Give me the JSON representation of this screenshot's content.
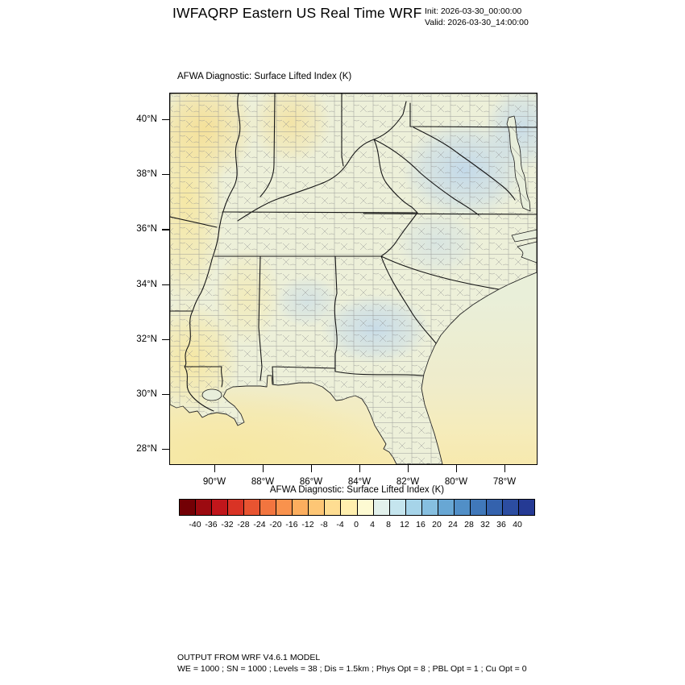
{
  "header": {
    "title": "IWFAQRP Eastern US Real Time WRF",
    "init_label": "Init: 2026-03-30_00:00:00",
    "valid_label": "Valid: 2026-03-30_14:00:00"
  },
  "map": {
    "field_title": "AFWA Diagnostic: Surface Lifted Index   (K)",
    "lat_ticks": [
      "40°N",
      "38°N",
      "36°N",
      "34°N",
      "32°N",
      "30°N",
      "28°N"
    ],
    "lon_ticks": [
      "90°W",
      "88°W",
      "86°W",
      "84°W",
      "82°W",
      "80°W",
      "78°W"
    ]
  },
  "colorbar": {
    "title": "AFWA Diagnostic: Surface Lifted Index   (K)",
    "tick_labels": [
      "-40",
      "-36",
      "-32",
      "-28",
      "-24",
      "-20",
      "-16",
      "-12",
      "-8",
      "-4",
      "0",
      "4",
      "8",
      "12",
      "16",
      "20",
      "24",
      "28",
      "32",
      "36",
      "40"
    ],
    "colors": [
      "#730005",
      "#9c0a10",
      "#c1161b",
      "#d93325",
      "#e85431",
      "#f2753f",
      "#f9924d",
      "#fcae5e",
      "#fdc675",
      "#fedd92",
      "#ffefae",
      "#fdfad2",
      "#e2f1ec",
      "#c5e5ee",
      "#a6d4e9",
      "#86bfe0",
      "#68a7d4",
      "#518fc7",
      "#4078ba",
      "#3462ad",
      "#2c4da1",
      "#253a94"
    ]
  },
  "footer": {
    "line1": "OUTPUT FROM WRF V4.6.1 MODEL",
    "line2": "WE = 1000 ; SN = 1000 ; Levels = 38 ; Dis = 1.5km ; Phys Opt = 8 ; PBL Opt = 1 ; Cu Opt = 0"
  },
  "chart_data": {
    "type": "heatmap",
    "title": "AFWA Diagnostic: Surface Lifted Index (K)",
    "model_title": "IWFAQRP Eastern US Real Time WRF",
    "init_time": "2026-03-30_00:00:00",
    "valid_time": "2026-03-30_14:00:00",
    "units": "K",
    "x_tick_labels": [
      "90°W",
      "88°W",
      "86°W",
      "84°W",
      "82°W",
      "80°W",
      "78°W"
    ],
    "y_tick_labels": [
      "40°N",
      "38°N",
      "36°N",
      "34°N",
      "32°N",
      "30°N",
      "28°N"
    ],
    "colorbar_tick_values": [
      -40,
      -36,
      -32,
      -28,
      -24,
      -20,
      -16,
      -12,
      -8,
      -4,
      0,
      4,
      8,
      12,
      16,
      20,
      24,
      28,
      32,
      36,
      40
    ],
    "colorbar_colors": [
      "#730005",
      "#9c0a10",
      "#c1161b",
      "#d93325",
      "#e85431",
      "#f2753f",
      "#f9924d",
      "#fcae5e",
      "#fdc675",
      "#fedd92",
      "#ffefae",
      "#fdfad2",
      "#e2f1ec",
      "#c5e5ee",
      "#a6d4e9",
      "#86bfe0",
      "#68a7d4",
      "#518fc7",
      "#4078ba",
      "#3462ad",
      "#2c4da1",
      "#253a94"
    ],
    "legend_position": "bottom",
    "field_summary": "Surface lifted index over the eastern US, mostly between -4 and +8 K: weakly negative (pale yellow) over the lower Mississippi Valley, Illinois and Gulf of Mexico; near zero over most land; weakly positive (pale blue, 4-8 K) over the central Appalachians, Virginia, Ohio and central Georgia/Alabama.",
    "map_overlays": [
      "county boundaries",
      "state boundaries",
      "coastline"
    ]
  }
}
